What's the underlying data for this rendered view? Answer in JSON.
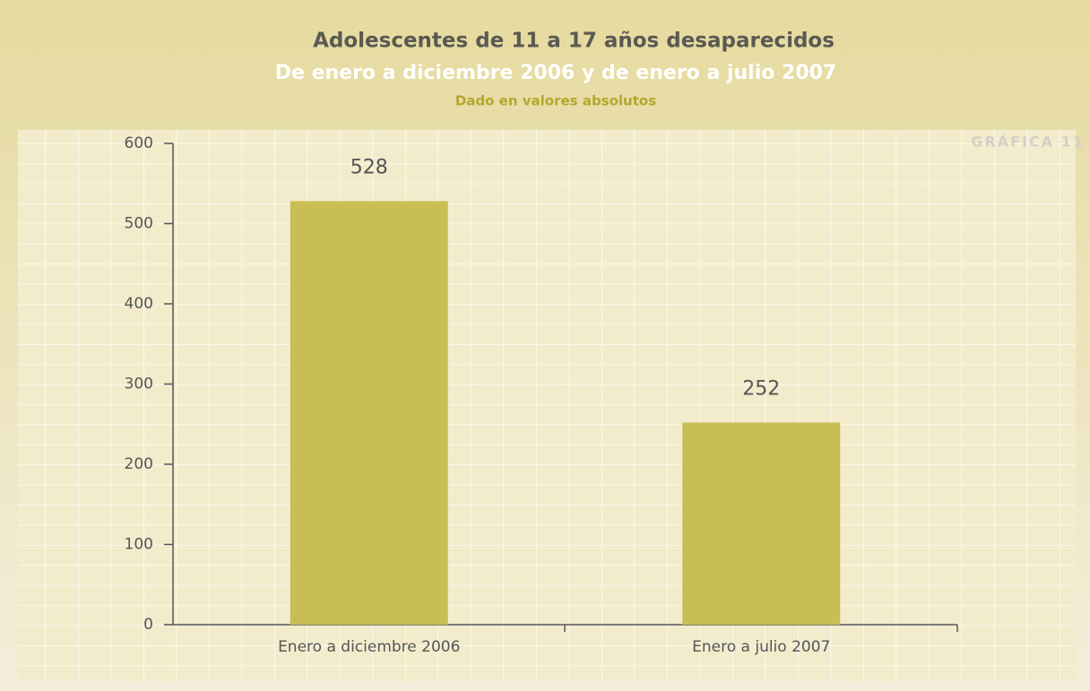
{
  "chart_data": {
    "type": "bar",
    "title": "Adolescentes de 11 a 17 años desaparecidos",
    "subtitle": "De enero a diciembre 2006 y de enero a julio 2007",
    "note": "Dado en valores absolutos",
    "label": "GRÁFICA 11",
    "categories": [
      "Enero a diciembre 2006",
      "Enero a julio 2007"
    ],
    "values": [
      528,
      252
    ],
    "color": "#c9bd55",
    "ylim": [
      0,
      600
    ],
    "yticks": [
      0,
      100,
      200,
      300,
      400,
      500,
      600
    ]
  }
}
